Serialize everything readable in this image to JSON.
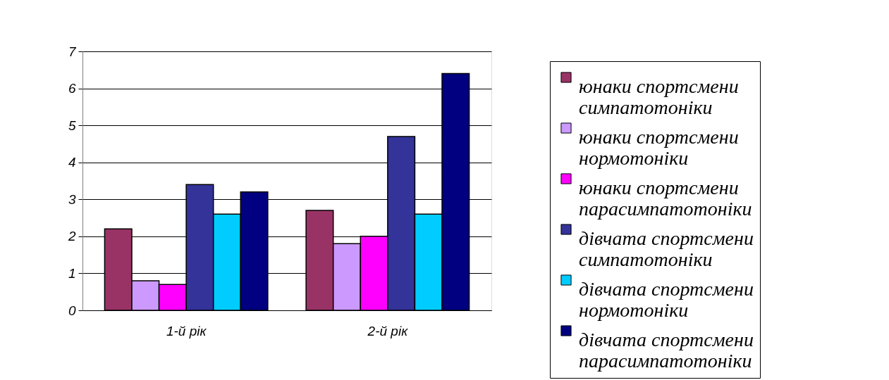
{
  "chart_data": {
    "type": "bar",
    "categories": [
      "1-й рік",
      "2-й рік"
    ],
    "series": [
      {
        "name": "юнаки спортсмени симпатотоніки",
        "color": "#993366",
        "values": [
          2.2,
          2.7
        ]
      },
      {
        "name": "юнаки спортсмени нормотоніки",
        "color": "#cc99ff",
        "values": [
          0.8,
          1.8
        ]
      },
      {
        "name": "юнаки спортсмени парасимпатотоніки",
        "color": "#ff00ff",
        "values": [
          0.7,
          2.0
        ]
      },
      {
        "name": "дівчата спортсмени симпатотоніки",
        "color": "#333399",
        "values": [
          3.4,
          4.7
        ]
      },
      {
        "name": "дівчата спортсмени нормотоніки",
        "color": "#00ccff",
        "values": [
          2.6,
          2.6
        ]
      },
      {
        "name": "дівчата спортсмени парасимпатотоніки",
        "color": "#000080",
        "values": [
          3.2,
          6.4
        ]
      }
    ],
    "ylim": [
      0,
      7
    ],
    "yticks": [
      0,
      1,
      2,
      3,
      4,
      5,
      6,
      7
    ],
    "grid": "y",
    "legend": "right"
  }
}
